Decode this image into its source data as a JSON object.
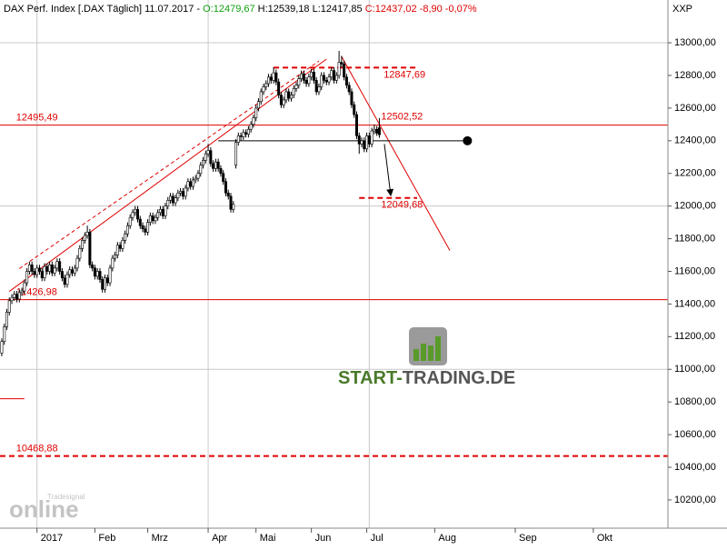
{
  "chart_data": {
    "type": "candlestick",
    "title": "DAX Perf. Index [.DAX  Täglich] 11.07.2017 -",
    "quote_open": "O:12479,67",
    "quote_high_low": "H:12539,18 L:12417,85",
    "quote_close": "C:12437,02 -8,90 -0,07%",
    "axis_code": "XXP",
    "watermarks": {
      "brand_a": "START-",
      "brand_b": "TRADING.DE",
      "online": "online",
      "tradesignal": "Tradesignal"
    },
    "xlim": [
      -0.7,
      264.65
    ],
    "ylim": [
      10027,
      13262
    ],
    "xticks": [
      {
        "value": 14,
        "label": "2017"
      },
      {
        "value": 37,
        "label": "Feb"
      },
      {
        "value": 58,
        "label": "Mrz"
      },
      {
        "value": 82,
        "label": "Apr"
      },
      {
        "value": 101,
        "label": "Mai"
      },
      {
        "value": 123,
        "label": "Jun"
      },
      {
        "value": 145,
        "label": "Jul"
      },
      {
        "value": 172,
        "label": "Aug"
      },
      {
        "value": 204,
        "label": "Sep"
      },
      {
        "value": 235,
        "label": "Okt"
      }
    ],
    "yticks": [
      {
        "value": 10200,
        "label": "10200,00"
      },
      {
        "value": 10400,
        "label": "10400,00"
      },
      {
        "value": 10600,
        "label": "10600,00"
      },
      {
        "value": 10800,
        "label": "10800,00"
      },
      {
        "value": 11000,
        "label": "11000,00"
      },
      {
        "value": 11200,
        "label": "11200,00"
      },
      {
        "value": 11400,
        "label": "11400,00"
      },
      {
        "value": 11600,
        "label": "11600,00"
      },
      {
        "value": 11800,
        "label": "11800,00"
      },
      {
        "value": 12000,
        "label": "12000,00"
      },
      {
        "value": 12200,
        "label": "12200,00"
      },
      {
        "value": 12400,
        "label": "12400,00"
      },
      {
        "value": 12600,
        "label": "12600,00"
      },
      {
        "value": 12800,
        "label": "12800,00"
      },
      {
        "value": 13000,
        "label": "13000,00"
      }
    ],
    "ygrid": [
      11000,
      12000,
      13000
    ],
    "xgrid": [
      14,
      82,
      146
    ],
    "up_color": "#ffffff",
    "down_color": "#000000",
    "level_color": "#e00000",
    "open": [
      11100,
      11170,
      11260,
      11350,
      11420,
      11440,
      11460,
      11430,
      11470,
      11480,
      11530,
      11600,
      11640,
      11600,
      11580,
      11620,
      11600,
      11560,
      11630,
      11600,
      11640,
      11590,
      11620,
      11660,
      11600,
      11560,
      11520,
      11580,
      11610,
      11590,
      11620,
      11680,
      11740,
      11790,
      11820,
      11840,
      11640,
      11620,
      11570,
      11600,
      11550,
      11490,
      11560,
      11530,
      11620,
      11680,
      11700,
      11760,
      11740,
      11790,
      11830,
      11880,
      11930,
      11960,
      11980,
      11920,
      11880,
      11860,
      11840,
      11900,
      11940,
      11910,
      11930,
      11960,
      11980,
      11940,
      12000,
      12035,
      12060,
      12020,
      12050,
      12080,
      12090,
      12060,
      12110,
      12150,
      12120,
      12160,
      12170,
      12200,
      12250,
      12280,
      12320,
      12340,
      12260,
      12230,
      12270,
      12230,
      12200,
      12150,
      12080,
      12060,
      11980,
      12250,
      12390,
      12430,
      12425,
      12450,
      12440,
      12470,
      12500,
      12540,
      12600,
      12640,
      12700,
      12730,
      12750,
      12790,
      12770,
      12816,
      12760,
      12680,
      12620,
      12650,
      12700,
      12660,
      12680,
      12720,
      12740,
      12780,
      12810,
      12770,
      12750,
      12790,
      12820,
      12770,
      12700,
      12730,
      12800,
      12770,
      12760,
      12790,
      12830,
      12770,
      12800,
      12880,
      12870,
      12790,
      12740,
      12700,
      12620,
      12560,
      12430,
      12380,
      12400,
      12350,
      12430,
      12380,
      12460,
      12470,
      12479.67
    ],
    "high": [
      11190,
      11280,
      11370,
      11440,
      11460,
      11480,
      11480,
      11490,
      11500,
      11550,
      11620,
      11660,
      11660,
      11620,
      11640,
      11640,
      11620,
      11650,
      11650,
      11660,
      11660,
      11640,
      11680,
      11680,
      11620,
      11580,
      11600,
      11630,
      11630,
      11640,
      11700,
      11760,
      11810,
      11840,
      11880,
      11860,
      11660,
      11640,
      11620,
      11620,
      11570,
      11580,
      11580,
      11640,
      11700,
      11720,
      11780,
      11780,
      11810,
      11850,
      11900,
      11950,
      11980,
      12000,
      12000,
      11940,
      11900,
      11880,
      11920,
      11960,
      11960,
      11950,
      11980,
      12000,
      12000,
      12020,
      12055,
      12080,
      12080,
      12070,
      12100,
      12110,
      12110,
      12130,
      12170,
      12170,
      12180,
      12190,
      12220,
      12270,
      12300,
      12340,
      12380,
      12360,
      12280,
      12290,
      12290,
      12250,
      12220,
      12170,
      12100,
      12080,
      12030,
      12410,
      12450,
      12450,
      12470,
      12470,
      12490,
      12520,
      12560,
      12620,
      12660,
      12720,
      12750,
      12770,
      12810,
      12810,
      12850,
      12836,
      12780,
      12700,
      12670,
      12720,
      12720,
      12700,
      12740,
      12760,
      12800,
      12830,
      12830,
      12790,
      12810,
      12840,
      12840,
      12790,
      12750,
      12820,
      12820,
      12790,
      12810,
      12850,
      12850,
      12820,
      12950,
      12920,
      12890,
      12810,
      12760,
      12720,
      12640,
      12580,
      12450,
      12420,
      12420,
      12450,
      12450,
      12480,
      12500,
      12490,
      12539.18
    ],
    "low": [
      11080,
      11150,
      11240,
      11330,
      11400,
      11420,
      11410,
      11410,
      11450,
      11460,
      11510,
      11580,
      11580,
      11560,
      11560,
      11580,
      11540,
      11540,
      11580,
      11580,
      11570,
      11570,
      11600,
      11580,
      11540,
      11500,
      11500,
      11560,
      11570,
      11570,
      11600,
      11660,
      11720,
      11770,
      11800,
      11620,
      11600,
      11550,
      11550,
      11530,
      11470,
      11470,
      11510,
      11510,
      11600,
      11660,
      11680,
      11720,
      11720,
      11770,
      11810,
      11860,
      11910,
      11940,
      11900,
      11860,
      11840,
      11820,
      11820,
      11880,
      11890,
      11890,
      11910,
      11940,
      11920,
      11920,
      11980,
      12015,
      12000,
      12000,
      12030,
      12060,
      12040,
      12040,
      12090,
      12100,
      12100,
      12140,
      12150,
      12180,
      12230,
      12260,
      12300,
      12240,
      12210,
      12210,
      12210,
      12180,
      12130,
      12060,
      12040,
      11960,
      11960,
      12230,
      12370,
      12400,
      12405,
      12420,
      12420,
      12450,
      12480,
      12520,
      12580,
      12620,
      12680,
      12710,
      12730,
      12750,
      12750,
      12740,
      12660,
      12600,
      12600,
      12630,
      12640,
      12640,
      12660,
      12700,
      12720,
      12760,
      12750,
      12730,
      12730,
      12770,
      12750,
      12680,
      12680,
      12710,
      12750,
      12740,
      12740,
      12770,
      12750,
      12750,
      12780,
      12850,
      12770,
      12720,
      12680,
      12600,
      12540,
      12410,
      12320,
      12360,
      12330,
      12330,
      12360,
      12360,
      12440,
      12430,
      12417.85
    ],
    "close": [
      11170,
      11260,
      11350,
      11420,
      11440,
      11460,
      11430,
      11470,
      11480,
      11530,
      11600,
      11640,
      11600,
      11580,
      11620,
      11600,
      11560,
      11630,
      11600,
      11640,
      11590,
      11620,
      11660,
      11600,
      11560,
      11520,
      11580,
      11610,
      11590,
      11620,
      11680,
      11740,
      11790,
      11820,
      11840,
      11640,
      11620,
      11570,
      11600,
      11550,
      11490,
      11560,
      11530,
      11620,
      11680,
      11700,
      11760,
      11740,
      11790,
      11830,
      11880,
      11930,
      11960,
      11980,
      11920,
      11880,
      11860,
      11840,
      11900,
      11940,
      11910,
      11930,
      11960,
      11980,
      11940,
      12000,
      12035,
      12060,
      12020,
      12050,
      12080,
      12090,
      12060,
      12110,
      12150,
      12120,
      12160,
      12170,
      12200,
      12250,
      12280,
      12320,
      12340,
      12260,
      12230,
      12270,
      12230,
      12200,
      12150,
      12080,
      12060,
      11980,
      12010,
      12390,
      12430,
      12425,
      12450,
      12440,
      12470,
      12500,
      12540,
      12600,
      12640,
      12700,
      12730,
      12750,
      12790,
      12770,
      12816,
      12760,
      12680,
      12620,
      12650,
      12700,
      12660,
      12680,
      12720,
      12740,
      12780,
      12810,
      12770,
      12750,
      12790,
      12820,
      12770,
      12700,
      12730,
      12800,
      12770,
      12760,
      12790,
      12830,
      12770,
      12800,
      12880,
      12870,
      12790,
      12740,
      12700,
      12620,
      12560,
      12430,
      12380,
      12400,
      12350,
      12430,
      12380,
      12460,
      12470,
      12446,
      12437.02
    ],
    "levels": [
      {
        "value": 12495.49,
        "x": [
          -0.7,
          264.65
        ],
        "dashed": false,
        "label": "12495,49",
        "label_x": 5,
        "label_side": "above"
      },
      {
        "value": 11426.98,
        "x": [
          -0.7,
          264.65
        ],
        "dashed": false,
        "label": "11426,98",
        "label_x": 5,
        "label_side": "above"
      },
      {
        "value": 10468.88,
        "x": [
          -0.7,
          264.65
        ],
        "dashed": true,
        "label": "10468,88",
        "label_x": 5,
        "label_side": "above"
      },
      {
        "value": 12847.69,
        "x": [
          108,
          165
        ],
        "dashed": true,
        "label": "12847,69",
        "label_x": 151,
        "label_side": "below"
      },
      {
        "value": 12049.68,
        "x": [
          142,
          165
        ],
        "dashed": true,
        "label": "12049,68",
        "label_x": 150,
        "label_side": "below"
      },
      {
        "value": 12502.52,
        "x": [
          150,
          150
        ],
        "dashed": false,
        "label": "12502,52",
        "label_x": 150,
        "label_side": "above"
      },
      {
        "value": 10820,
        "x": [
          -0.7,
          9
        ],
        "dashed": false
      }
    ],
    "trendlines": [
      {
        "x": [
          3,
          129
        ],
        "y": [
          11477,
          12900
        ],
        "dashed": false
      },
      {
        "x": [
          7,
          126
        ],
        "y": [
          11617,
          12888
        ],
        "dashed": true
      },
      {
        "x": [
          135,
          178
        ],
        "y": [
          12916,
          11728
        ],
        "dashed": false
      }
    ],
    "hline": {
      "value": 12400,
      "x": [
        86,
        185
      ]
    },
    "arrow": {
      "x": [
        152,
        154.5
      ],
      "y": [
        12380,
        12070
      ]
    }
  }
}
